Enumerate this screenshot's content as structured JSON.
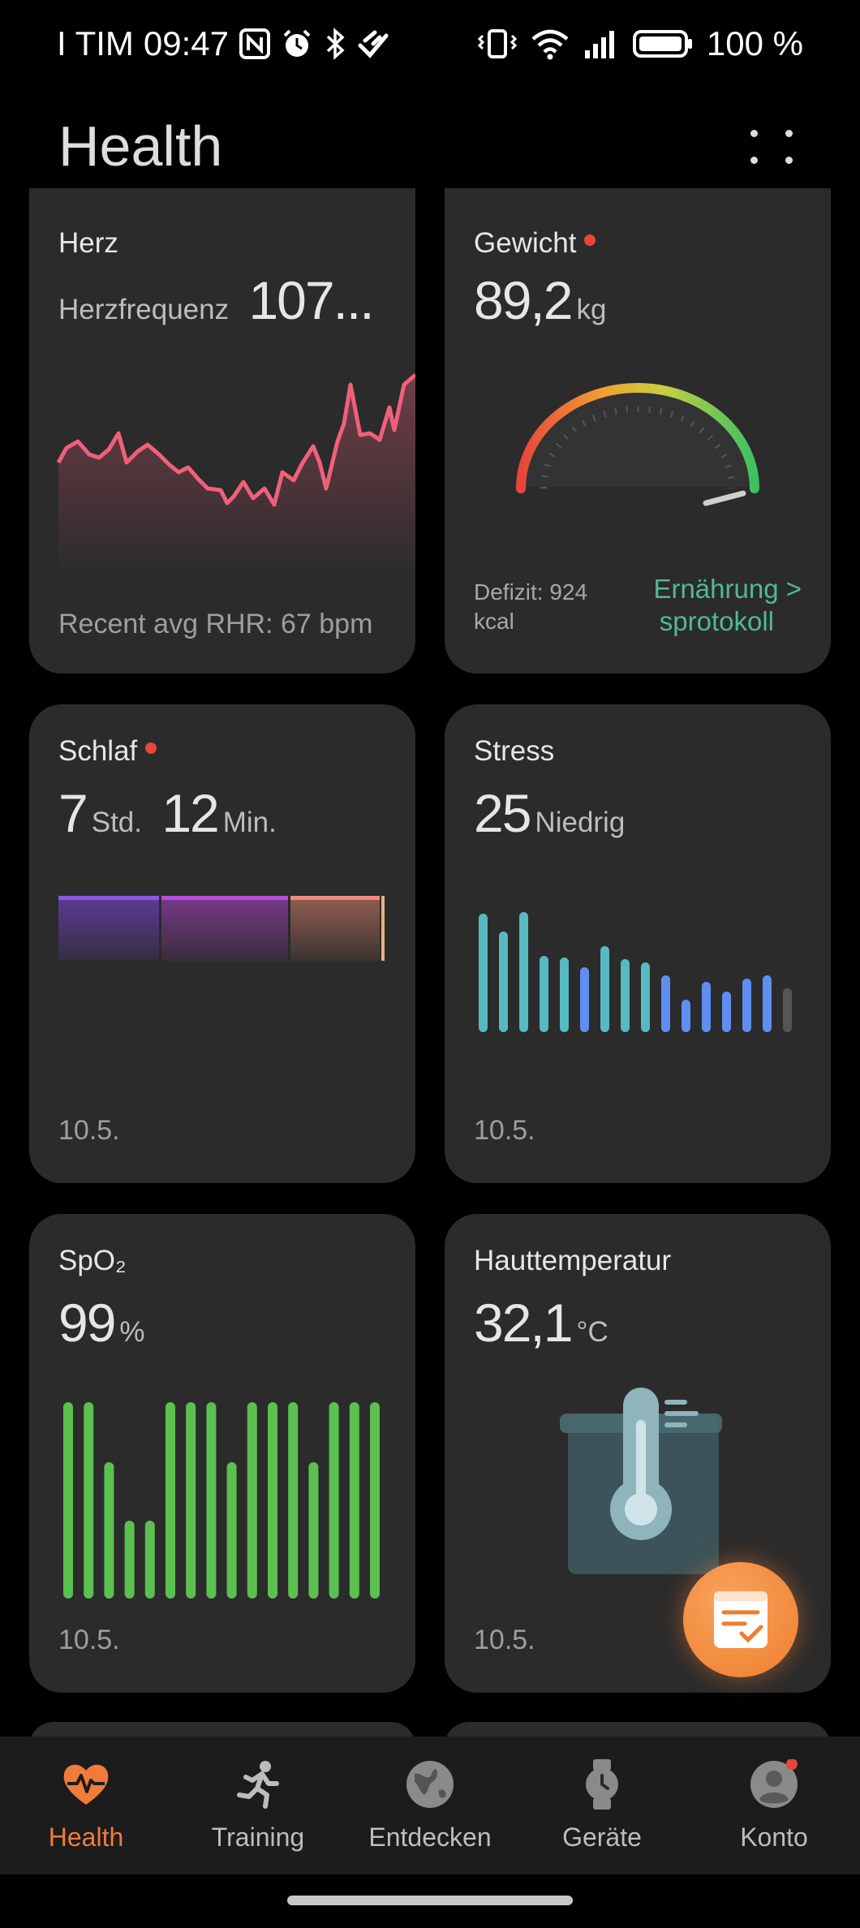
{
  "status_bar": {
    "carrier": "I TIM",
    "time": "09:47",
    "battery": "100 %"
  },
  "header": {
    "title": "Health"
  },
  "cards": {
    "heart": {
      "title": "Herz",
      "label": "Herzfrequenz",
      "value": "107...",
      "footer": "Recent avg RHR: 67 bpm"
    },
    "weight": {
      "title": "Gewicht",
      "value": "89,2",
      "unit": "kg",
      "deficit_line1": "Defizit: 924",
      "deficit_line2": "kcal",
      "link_line1": "Ernährung",
      "link_line2": "sprotokoll",
      "link_chevron": ">",
      "accent": "#4fb89a"
    },
    "sleep": {
      "title": "Schlaf",
      "hours": "7",
      "hours_unit": "Std.",
      "minutes": "12",
      "minutes_unit": "Min.",
      "date": "10.5."
    },
    "stress": {
      "title": "Stress",
      "value": "25",
      "level": "Niedrig",
      "date": "10.5."
    },
    "spo2": {
      "title": "SpO₂",
      "value": "99",
      "unit": "%",
      "date": "10.5."
    },
    "skin_temp": {
      "title": "Hauttemperatur",
      "value": "32,1",
      "unit": "°C",
      "date": "10.5."
    }
  },
  "bottom_nav": [
    {
      "label": "Health",
      "icon": "heart-pulse-icon",
      "active": true
    },
    {
      "label": "Training",
      "icon": "running-person-icon",
      "active": false
    },
    {
      "label": "Entdecken",
      "icon": "globe-icon",
      "active": false
    },
    {
      "label": "Geräte",
      "icon": "watch-icon",
      "active": false
    },
    {
      "label": "Konto",
      "icon": "account-icon",
      "active": false
    }
  ],
  "colors": {
    "accent_orange": "#f07b3a",
    "card_bg": "#2b2b2b",
    "heart_line": "#f0607a",
    "spo2_bar": "#5cc050",
    "stress_teal": "#57b9c1",
    "stress_blue": "#5f8ef0"
  }
}
